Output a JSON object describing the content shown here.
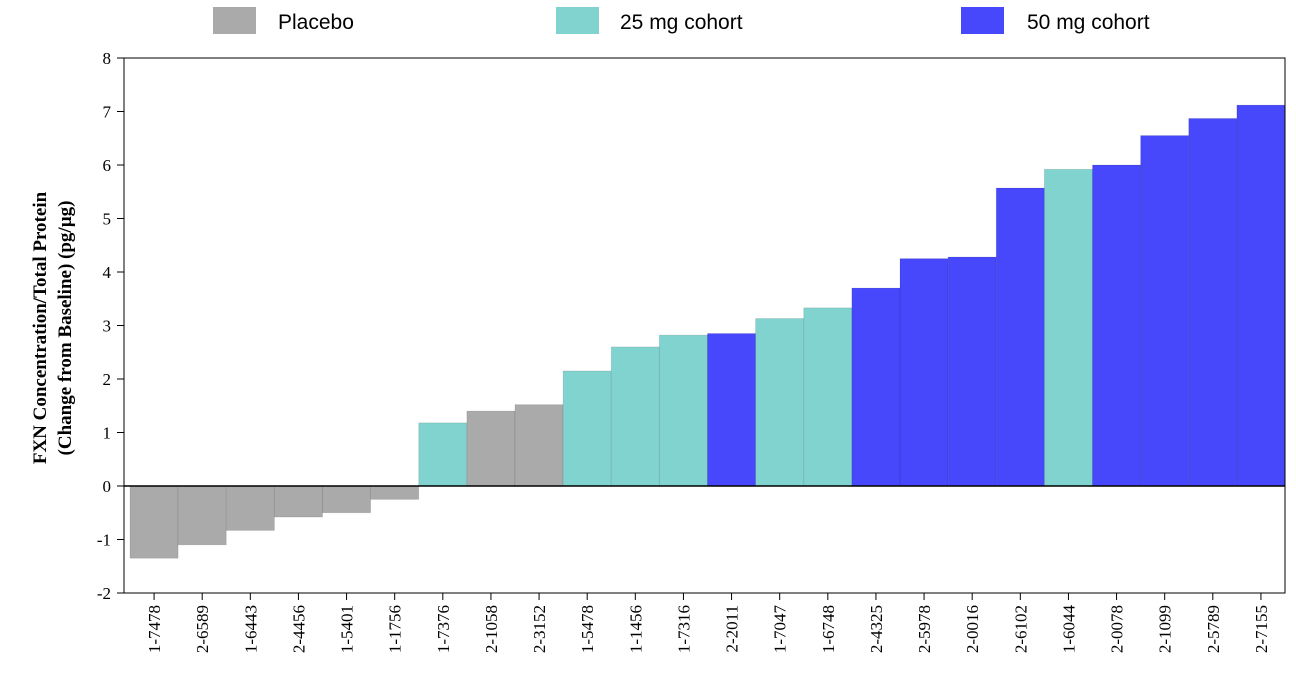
{
  "colors": {
    "Placebo": "#aaaaaa",
    "25 mg cohort": "#80d3cf",
    "50 mg cohort": "#4747fb"
  },
  "chart_data": {
    "type": "bar",
    "legend": [
      "Placebo",
      "25 mg cohort",
      "50 mg cohort"
    ],
    "legend_position": "top",
    "ylabel": [
      "FXN Concentration/Total Protein",
      "(Change from Baseline) (pg/µg)"
    ],
    "ylim": [
      -2,
      8
    ],
    "yticks": [
      "8",
      "7",
      "6",
      "5",
      "4",
      "3",
      "2",
      "1",
      "0",
      "-1",
      "-2"
    ],
    "grid": false,
    "categories": [
      "1-7478",
      "2-6589",
      "1-6443",
      "2-4456",
      "1-5401",
      "1-1756",
      "1-7376",
      "2-1058",
      "2-3152",
      "1-5478",
      "1-1456",
      "1-7316",
      "2-2011",
      "1-7047",
      "1-6748",
      "2-4325",
      "2-5978",
      "2-0016",
      "2-6102",
      "1-6044",
      "2-0078",
      "2-1099",
      "2-5789",
      "2-7155"
    ],
    "values": [
      -1.35,
      -1.1,
      -0.83,
      -0.58,
      -0.5,
      -0.25,
      1.18,
      1.4,
      1.52,
      2.15,
      2.6,
      2.82,
      2.85,
      3.13,
      3.33,
      3.7,
      4.25,
      4.28,
      5.57,
      5.92,
      6.0,
      6.55,
      6.87,
      7.12
    ],
    "groups": [
      "Placebo",
      "Placebo",
      "Placebo",
      "Placebo",
      "Placebo",
      "Placebo",
      "25 mg cohort",
      "Placebo",
      "Placebo",
      "25 mg cohort",
      "25 mg cohort",
      "25 mg cohort",
      "50 mg cohort",
      "25 mg cohort",
      "25 mg cohort",
      "50 mg cohort",
      "50 mg cohort",
      "50 mg cohort",
      "50 mg cohort",
      "25 mg cohort",
      "50 mg cohort",
      "50 mg cohort",
      "50 mg cohort",
      "50 mg cohort"
    ]
  }
}
